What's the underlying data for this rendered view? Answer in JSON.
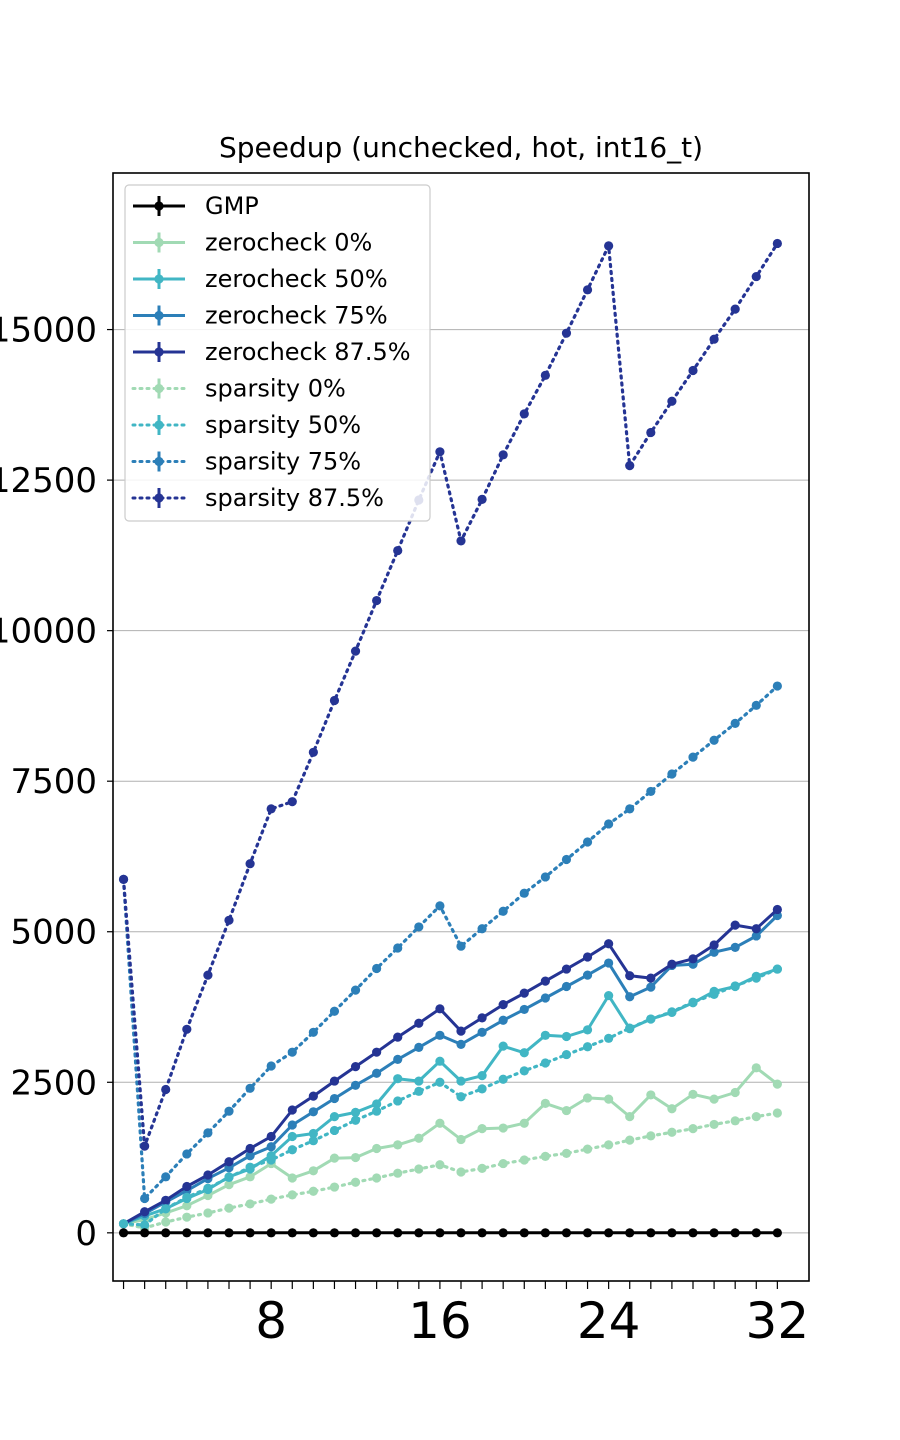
{
  "chart_data": {
    "type": "line",
    "title": "Speedup (unchecked, hot, int16_t)",
    "xlabel": "",
    "ylabel": "",
    "xlim": [
      0.5,
      33.5
    ],
    "ylim": [
      -800,
      17600
    ],
    "xticks": [
      8,
      16,
      24,
      32
    ],
    "xtick_labels": [
      "8",
      "16",
      "24",
      "32"
    ],
    "yticks": [
      0,
      2500,
      5000,
      7500,
      10000,
      12500,
      15000
    ],
    "ytick_labels": [
      "0",
      "2500",
      "5000",
      "7500",
      "10000",
      "12500",
      "15000"
    ],
    "grid": "horizontal",
    "legend_position": "top-left",
    "x": [
      1,
      2,
      3,
      4,
      5,
      6,
      7,
      8,
      9,
      10,
      11,
      12,
      13,
      14,
      15,
      16,
      17,
      18,
      19,
      20,
      21,
      22,
      23,
      24,
      25,
      26,
      27,
      28,
      29,
      30,
      31,
      32
    ],
    "series": [
      {
        "name": "GMP",
        "color": "#000000",
        "style": "solid",
        "values": [
          0,
          0,
          0,
          0,
          0,
          0,
          0,
          0,
          0,
          0,
          0,
          0,
          0,
          0,
          0,
          0,
          0,
          0,
          0,
          0,
          0,
          0,
          0,
          0,
          0,
          0,
          0,
          0,
          0,
          0,
          0,
          0
        ]
      },
      {
        "name": "zerocheck 0%",
        "color": "#a1dab4",
        "style": "solid",
        "values": [
          150,
          220,
          330,
          450,
          620,
          800,
          930,
          1150,
          910,
          1030,
          1240,
          1250,
          1400,
          1460,
          1570,
          1820,
          1550,
          1730,
          1740,
          1820,
          2150,
          2030,
          2240,
          2220,
          1930,
          2290,
          2060,
          2300,
          2220,
          2330,
          2740,
          2470
        ]
      },
      {
        "name": "zerocheck 50%",
        "color": "#41b6c4",
        "style": "solid",
        "values": [
          150,
          280,
          400,
          570,
          720,
          930,
          1060,
          1280,
          1600,
          1650,
          1930,
          2000,
          2140,
          2560,
          2520,
          2850,
          2520,
          2610,
          3100,
          2990,
          3280,
          3260,
          3370,
          3940,
          3390,
          3550,
          3660,
          3820,
          4010,
          4090,
          4260,
          4380
        ]
      },
      {
        "name": "zerocheck 75%",
        "color": "#2c7fb8",
        "style": "solid",
        "values": [
          150,
          320,
          510,
          700,
          900,
          1080,
          1280,
          1430,
          1790,
          2010,
          2230,
          2450,
          2650,
          2880,
          3080,
          3280,
          3130,
          3330,
          3530,
          3710,
          3900,
          4090,
          4280,
          4480,
          3920,
          4080,
          4440,
          4460,
          4660,
          4740,
          4930,
          5270
        ]
      },
      {
        "name": "zerocheck 87.5%",
        "color": "#253494",
        "style": "solid",
        "values": [
          150,
          350,
          540,
          770,
          960,
          1180,
          1400,
          1600,
          2040,
          2270,
          2520,
          2760,
          3000,
          3250,
          3480,
          3720,
          3350,
          3570,
          3790,
          3980,
          4180,
          4380,
          4580,
          4800,
          4270,
          4230,
          4460,
          4550,
          4780,
          5110,
          5050,
          5370
        ]
      },
      {
        "name": "sparsity 0%",
        "color": "#a1dab4",
        "style": "dotted",
        "values": [
          150,
          80,
          180,
          260,
          330,
          410,
          480,
          560,
          630,
          690,
          760,
          840,
          910,
          990,
          1060,
          1130,
          1010,
          1070,
          1150,
          1210,
          1270,
          1320,
          1390,
          1460,
          1540,
          1610,
          1670,
          1730,
          1800,
          1860,
          1930,
          1990
        ]
      },
      {
        "name": "sparsity 50%",
        "color": "#41b6c4",
        "style": "dotted",
        "values": [
          150,
          130,
          400,
          590,
          740,
          920,
          1090,
          1210,
          1380,
          1530,
          1700,
          1870,
          2020,
          2190,
          2350,
          2500,
          2260,
          2390,
          2550,
          2690,
          2820,
          2960,
          3090,
          3230,
          3400,
          3550,
          3670,
          3830,
          3960,
          4100,
          4230,
          4380
        ]
      },
      {
        "name": "sparsity 75%",
        "color": "#2c7fb8",
        "style": "dotted",
        "values": [
          5870,
          570,
          930,
          1310,
          1660,
          2020,
          2400,
          2770,
          3000,
          3330,
          3680,
          4030,
          4390,
          4730,
          5080,
          5430,
          4760,
          5050,
          5340,
          5640,
          5910,
          6200,
          6490,
          6790,
          7040,
          7330,
          7620,
          7900,
          8180,
          8460,
          8760,
          9080
        ]
      },
      {
        "name": "sparsity 87.5%",
        "color": "#253494",
        "style": "dotted",
        "values": [
          5870,
          1440,
          2380,
          3380,
          4280,
          5190,
          6130,
          7040,
          7160,
          7980,
          8840,
          9660,
          10500,
          11330,
          12170,
          12970,
          11490,
          12180,
          12920,
          13600,
          14240,
          14940,
          15660,
          16390,
          12740,
          13290,
          13810,
          14320,
          14840,
          15340,
          15880,
          16430
        ]
      }
    ]
  }
}
